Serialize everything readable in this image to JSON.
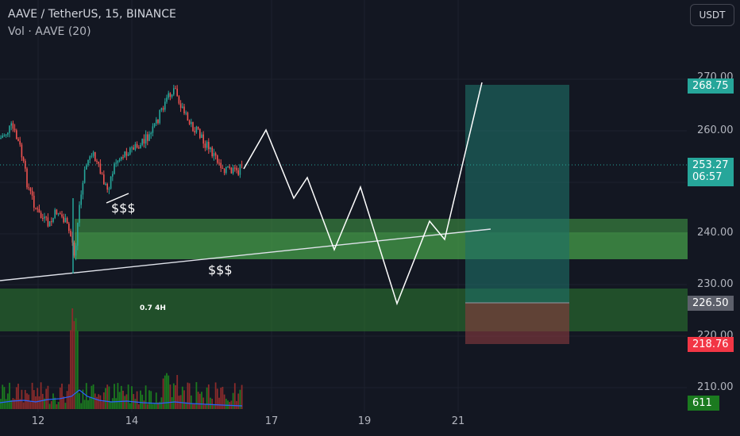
{
  "header": {
    "title": "AAVE / TetherUS, 15, BINANCE",
    "vol_label": "Vol · AAVE (20)"
  },
  "currency_button": "USDT",
  "y_axis_labels": [
    "270.00",
    "260.00",
    "240.00",
    "230.00",
    "220.00",
    "210.00"
  ],
  "x_axis_labels": [
    "12",
    "14",
    "17",
    "19",
    "21"
  ],
  "badges": {
    "target": "268.75",
    "current_price": "253.27",
    "countdown": "06:57",
    "entry": "226.50",
    "stop": "218.76",
    "volume": "611"
  },
  "annotations": {
    "liquidity_upper": "$$$",
    "liquidity_lower": "$$$",
    "fib_label": "0.7 4H"
  },
  "colors": {
    "background": "#131722",
    "up": "#26a69a",
    "down": "#ef5350",
    "zone": "#4caf50",
    "target_zone": "#1e7068",
    "stop_zone": "#8a3b3f",
    "badge_gray": "#5d606b"
  }
}
